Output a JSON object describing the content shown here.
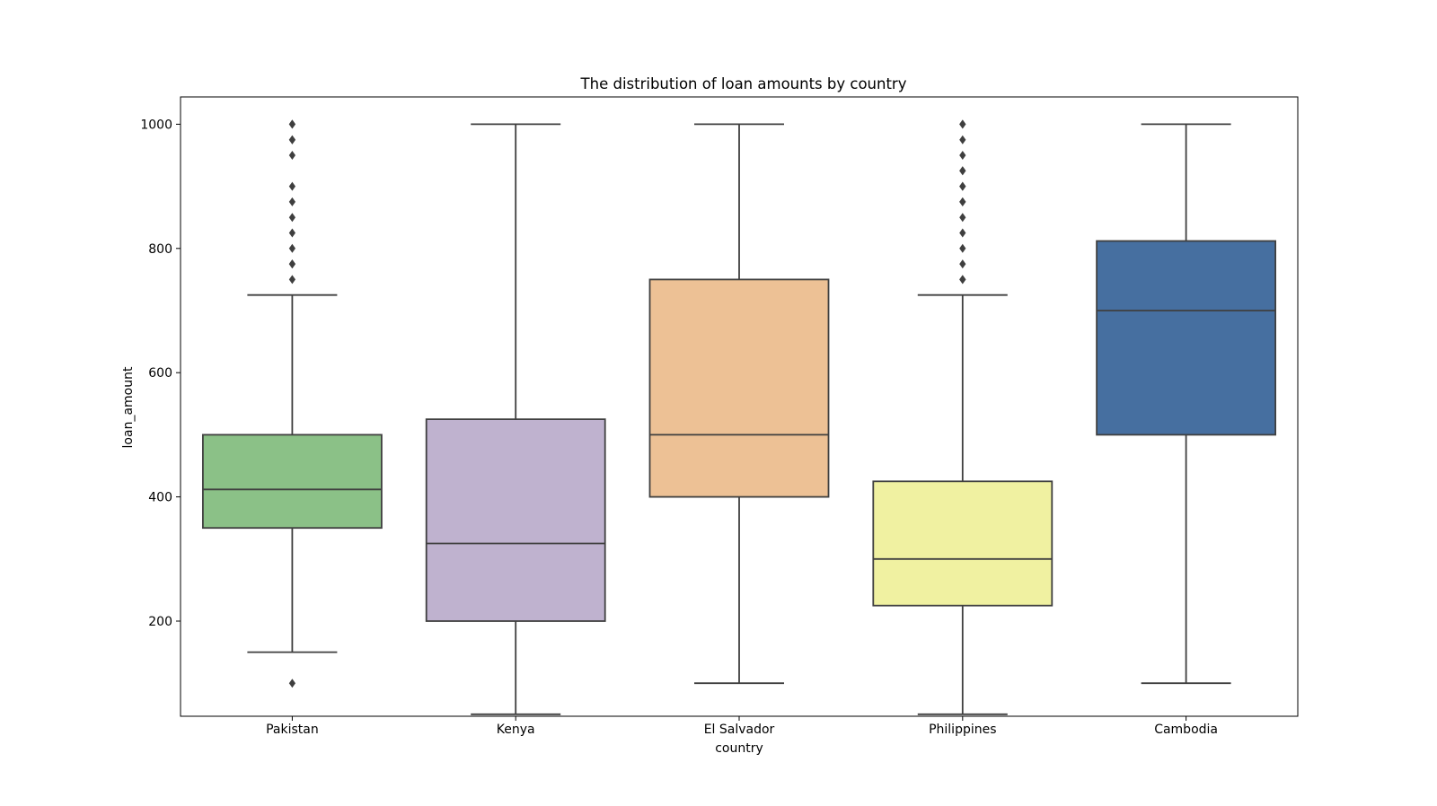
{
  "chart_data": {
    "type": "box",
    "title": "The distribution of loan amounts by country",
    "xlabel": "country",
    "ylabel": "loan_amount",
    "ylim": [
      0,
      1050
    ],
    "yticks": [
      "200",
      "400",
      "600",
      "800",
      "1000"
    ],
    "grid": false,
    "legend": "none",
    "categories": [
      "Pakistan",
      "Kenya",
      "El Salvador",
      "Philippines",
      "Cambodia"
    ],
    "boxes": [
      {
        "category": "Pakistan",
        "color": "#8BC187",
        "whisker_low": 150,
        "q1": 350,
        "median": 412,
        "q3": 500,
        "whisker_high": 725,
        "outliers": [
          100,
          750,
          775,
          775,
          800,
          825,
          850,
          875,
          900,
          950,
          975,
          975,
          1000,
          1000
        ]
      },
      {
        "category": "Kenya",
        "color": "#BFB2CF",
        "whisker_low": 50,
        "q1": 200,
        "median": 325,
        "q3": 525,
        "whisker_high": 1000,
        "outliers": []
      },
      {
        "category": "El Salvador",
        "color": "#EDC195",
        "whisker_low": 100,
        "q1": 400,
        "median": 500,
        "q3": 750,
        "whisker_high": 1000,
        "outliers": []
      },
      {
        "category": "Philippines",
        "color": "#F0F1A1",
        "whisker_low": 50,
        "q1": 225,
        "median": 300,
        "q3": 425,
        "whisker_high": 725,
        "outliers": [
          750,
          750,
          775,
          800,
          825,
          850,
          875,
          875,
          900,
          900,
          925,
          925,
          950,
          975,
          1000,
          1000
        ]
      },
      {
        "category": "Cambodia",
        "color": "#466FA0",
        "whisker_low": 100,
        "q1": 500,
        "median": 700,
        "q3": 812,
        "whisker_high": 1000,
        "outliers": []
      }
    ],
    "line_color": "#3F3F3F"
  }
}
